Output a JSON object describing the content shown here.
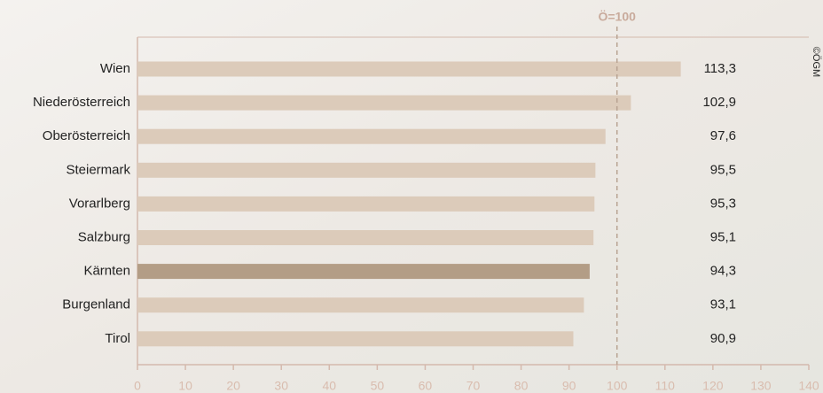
{
  "chart_data": {
    "type": "bar",
    "orientation": "horizontal",
    "categories": [
      "Wien",
      "Niederösterreich",
      "Oberösterreich",
      "Steiermark",
      "Vorarlberg",
      "Salzburg",
      "Kärnten",
      "Burgenland",
      "Tirol"
    ],
    "values": [
      113.3,
      102.9,
      97.6,
      95.5,
      95.3,
      95.1,
      94.3,
      93.1,
      90.9
    ],
    "value_labels": [
      "113,3",
      "102,9",
      "97,6",
      "95,5",
      "95,3",
      "95,1",
      "94,3",
      "93,1",
      "90,9"
    ],
    "colors": [
      "#dccbba",
      "#dccbba",
      "#dccbba",
      "#dccbba",
      "#dccbba",
      "#dccbba",
      "#b39d86",
      "#dccbba",
      "#dccbba"
    ],
    "xlim": [
      0,
      140
    ],
    "xticks": [
      0,
      10,
      20,
      30,
      40,
      50,
      60,
      70,
      80,
      90,
      100,
      110,
      120,
      130,
      140
    ],
    "reference_line": {
      "value": 100,
      "label": "Ö=100"
    },
    "source": "©ÖGM"
  }
}
